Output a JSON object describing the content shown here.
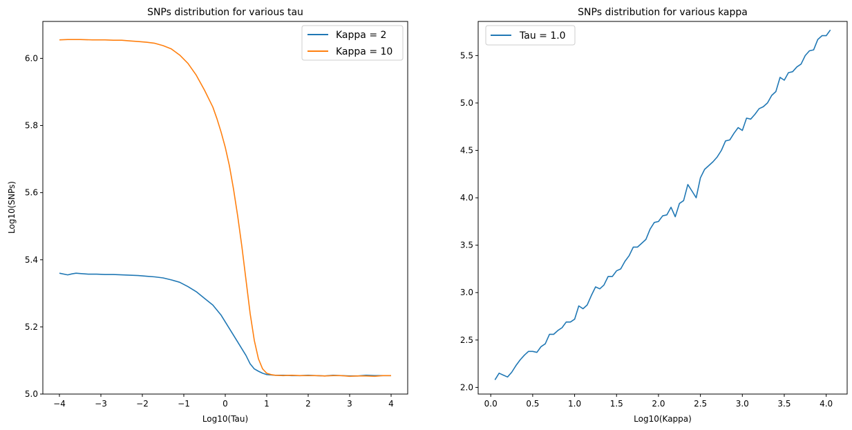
{
  "chart_data": [
    {
      "type": "line",
      "title": "SNPs distribution for various tau",
      "xlabel": "Log10(Tau)",
      "ylabel": "Log10(SNPs)",
      "xlim": [
        -4.4,
        4.4
      ],
      "ylim": [
        5.0,
        6.11
      ],
      "xticks": [
        -4,
        -3,
        -2,
        -1,
        0,
        1,
        2,
        3,
        4
      ],
      "xtick_labels": [
        "−4",
        "−3",
        "−2",
        "−1",
        "0",
        "1",
        "2",
        "3",
        "4"
      ],
      "yticks": [
        5.0,
        5.2,
        5.4,
        5.6,
        5.8,
        6.0
      ],
      "ytick_labels": [
        "5.0",
        "5.2",
        "5.4",
        "5.6",
        "5.8",
        "6.0"
      ],
      "grid": false,
      "legend": "top-right",
      "series": [
        {
          "name": "Kappa = 2",
          "color": "#1f77b4",
          "x": [
            -4.0,
            -3.8,
            -3.7,
            -3.6,
            -3.5,
            -3.3,
            -3.1,
            -2.9,
            -2.7,
            -2.5,
            -2.3,
            -2.1,
            -1.9,
            -1.7,
            -1.5,
            -1.3,
            -1.1,
            -0.9,
            -0.7,
            -0.5,
            -0.3,
            -0.1,
            0.1,
            0.3,
            0.5,
            0.6,
            0.7,
            0.8,
            0.9,
            1.0,
            1.1,
            1.2,
            1.4,
            1.6,
            1.8,
            2.0,
            2.2,
            2.4,
            2.6,
            2.8,
            3.0,
            3.2,
            3.4,
            3.6,
            3.8,
            4.0
          ],
          "y": [
            5.36,
            5.355,
            5.358,
            5.36,
            5.359,
            5.357,
            5.357,
            5.356,
            5.356,
            5.355,
            5.354,
            5.353,
            5.351,
            5.349,
            5.346,
            5.34,
            5.333,
            5.32,
            5.305,
            5.285,
            5.265,
            5.235,
            5.195,
            5.155,
            5.115,
            5.09,
            5.075,
            5.068,
            5.062,
            5.058,
            5.057,
            5.056,
            5.056,
            5.055,
            5.055,
            5.056,
            5.055,
            5.054,
            5.056,
            5.055,
            5.054,
            5.054,
            5.056,
            5.055,
            5.055,
            5.055
          ]
        },
        {
          "name": "Kappa = 10",
          "color": "#ff7f0e",
          "x": [
            -4.0,
            -3.8,
            -3.5,
            -3.2,
            -2.9,
            -2.7,
            -2.5,
            -2.3,
            -2.1,
            -1.9,
            -1.7,
            -1.5,
            -1.3,
            -1.1,
            -0.9,
            -0.7,
            -0.5,
            -0.4,
            -0.3,
            -0.2,
            -0.1,
            0.0,
            0.1,
            0.2,
            0.3,
            0.4,
            0.5,
            0.6,
            0.7,
            0.8,
            0.9,
            1.0,
            1.1,
            1.2,
            1.4,
            1.6,
            1.8,
            2.0,
            2.2,
            2.4,
            2.6,
            2.8,
            3.0,
            3.2,
            3.4,
            3.6,
            3.8,
            4.0
          ],
          "y": [
            6.055,
            6.056,
            6.056,
            6.055,
            6.055,
            6.054,
            6.054,
            6.052,
            6.05,
            6.048,
            6.045,
            6.038,
            6.028,
            6.01,
            5.985,
            5.95,
            5.905,
            5.88,
            5.855,
            5.82,
            5.78,
            5.735,
            5.68,
            5.61,
            5.53,
            5.44,
            5.34,
            5.24,
            5.16,
            5.105,
            5.075,
            5.062,
            5.058,
            5.056,
            5.055,
            5.056,
            5.055,
            5.055,
            5.055,
            5.054,
            5.055,
            5.055,
            5.053,
            5.054,
            5.054,
            5.053,
            5.055,
            5.055
          ]
        }
      ]
    },
    {
      "type": "line",
      "title": "SNPs distribution for various kappa",
      "xlabel": "Log10(Kappa)",
      "ylabel": "",
      "xlim": [
        -0.15,
        4.25
      ],
      "ylim": [
        1.93,
        5.86
      ],
      "xticks": [
        0.0,
        0.5,
        1.0,
        1.5,
        2.0,
        2.5,
        3.0,
        3.5,
        4.0
      ],
      "xtick_labels": [
        "0.0",
        "0.5",
        "1.0",
        "1.5",
        "2.0",
        "2.5",
        "3.0",
        "3.5",
        "4.0"
      ],
      "yticks": [
        2.0,
        2.5,
        3.0,
        3.5,
        4.0,
        4.5,
        5.0,
        5.5
      ],
      "ytick_labels": [
        "2.0",
        "2.5",
        "3.0",
        "3.5",
        "4.0",
        "4.5",
        "5.0",
        "5.5"
      ],
      "grid": false,
      "legend": "top-left",
      "series": [
        {
          "name": "Tau = 1.0",
          "color": "#1f77b4",
          "x": [
            0.05,
            0.1,
            0.15,
            0.2,
            0.25,
            0.3,
            0.35,
            0.4,
            0.45,
            0.5,
            0.55,
            0.6,
            0.65,
            0.7,
            0.75,
            0.8,
            0.85,
            0.9,
            0.95,
            1.0,
            1.05,
            1.1,
            1.15,
            1.2,
            1.25,
            1.3,
            1.35,
            1.4,
            1.45,
            1.5,
            1.55,
            1.6,
            1.65,
            1.7,
            1.75,
            1.8,
            1.85,
            1.9,
            1.95,
            2.0,
            2.05,
            2.1,
            2.15,
            2.2,
            2.25,
            2.3,
            2.35,
            2.4,
            2.45,
            2.5,
            2.55,
            2.6,
            2.65,
            2.7,
            2.75,
            2.8,
            2.85,
            2.9,
            2.95,
            3.0,
            3.05,
            3.1,
            3.15,
            3.2,
            3.25,
            3.3,
            3.35,
            3.4,
            3.45,
            3.5,
            3.55,
            3.6,
            3.65,
            3.7,
            3.75,
            3.8,
            3.85,
            3.9,
            3.95,
            4.0,
            4.05
          ],
          "y": [
            2.08,
            2.15,
            2.13,
            2.11,
            2.16,
            2.23,
            2.29,
            2.34,
            2.38,
            2.38,
            2.37,
            2.43,
            2.46,
            2.56,
            2.56,
            2.6,
            2.63,
            2.69,
            2.69,
            2.72,
            2.86,
            2.83,
            2.87,
            2.97,
            3.06,
            3.04,
            3.08,
            3.17,
            3.17,
            3.23,
            3.25,
            3.33,
            3.39,
            3.48,
            3.48,
            3.52,
            3.56,
            3.67,
            3.74,
            3.75,
            3.81,
            3.82,
            3.9,
            3.8,
            3.94,
            3.97,
            4.14,
            4.07,
            4.0,
            4.21,
            4.3,
            4.34,
            4.38,
            4.43,
            4.5,
            4.6,
            4.61,
            4.68,
            4.74,
            4.71,
            4.84,
            4.83,
            4.88,
            4.94,
            4.96,
            5.0,
            5.08,
            5.12,
            5.27,
            5.24,
            5.32,
            5.33,
            5.38,
            5.41,
            5.5,
            5.55,
            5.56,
            5.67,
            5.71,
            5.71,
            5.77
          ]
        }
      ]
    }
  ]
}
